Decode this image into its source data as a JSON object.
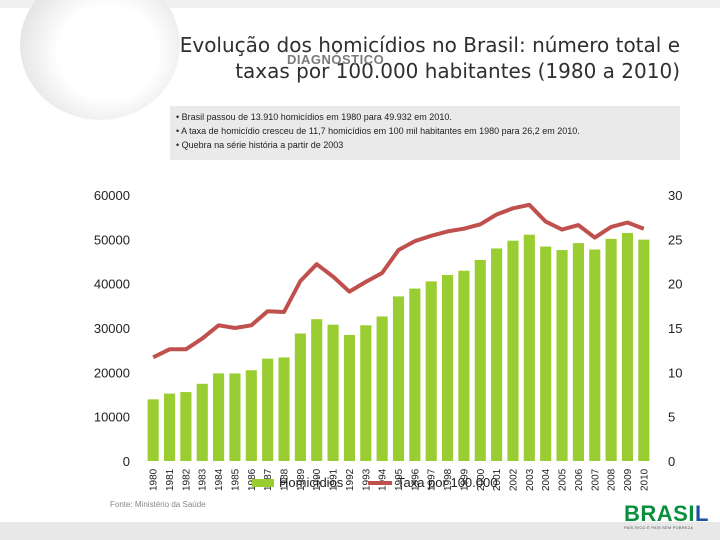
{
  "title_line1": "Evolução dos homicídios no Brasil: número total e",
  "title_line2": "taxas por 100.000 habitantes (1980 a 2010)",
  "overlay_title": "DIAGNÓSTICO",
  "notes": [
    "• Brasil passou de 13.910 homicídios em 1980 para 49.932 em 2010.",
    "• A taxa de homicídio cresceu de 11,7 homicídios em 100 mil habitantes em 1980 para 26,2 em 2010.",
    "• Quebra na série história a partir de 2003"
  ],
  "source": "Fonte: Ministério da Saúde",
  "logo": {
    "word_green": "BRASI",
    "word_blue": "L",
    "tagline": "PAÍS RICO É PAÍS SEM POBREZA"
  },
  "colors": {
    "bar": "#9acd32",
    "line": "#c0504d",
    "plot_bg": "#ffffff"
  },
  "chart_data": {
    "type": "bar",
    "categories": [
      "1980",
      "1981",
      "1982",
      "1983",
      "1984",
      "1985",
      "1986",
      "1987",
      "1988",
      "1989",
      "1990",
      "1991",
      "1992",
      "1993",
      "1994",
      "1995",
      "1996",
      "1997",
      "1998",
      "1999",
      "2000",
      "2001",
      "2002",
      "2003",
      "2004",
      "2005",
      "2006",
      "2007",
      "2008",
      "2009",
      "2010"
    ],
    "series": [
      {
        "name": "Homicídios",
        "type": "bar",
        "axis": "left",
        "values": [
          13910,
          15213,
          15550,
          17408,
          19767,
          19747,
          20481,
          23087,
          23357,
          28757,
          31989,
          30750,
          28435,
          30610,
          32603,
          37128,
          38894,
          40507,
          41950,
          42914,
          45360,
          47943,
          49695,
          51043,
          48374,
          47578,
          49145,
          47707,
          50113,
          51434,
          49932
        ]
      },
      {
        "name": "Taxa por 100.000",
        "type": "line",
        "axis": "right",
        "values": [
          11.7,
          12.6,
          12.6,
          13.8,
          15.3,
          15.0,
          15.3,
          16.9,
          16.8,
          20.3,
          22.2,
          20.8,
          19.1,
          20.2,
          21.2,
          23.8,
          24.8,
          25.4,
          25.9,
          26.2,
          26.7,
          27.8,
          28.5,
          28.9,
          27.0,
          26.1,
          26.6,
          25.2,
          26.4,
          26.9,
          26.2
        ]
      }
    ],
    "yleft": {
      "ylim": [
        0,
        60000
      ],
      "ticks": [
        "0",
        "10000",
        "20000",
        "30000",
        "40000",
        "50000",
        "60000"
      ]
    },
    "yright": {
      "ylim": [
        0,
        30
      ],
      "ticks": [
        "0",
        "5",
        "10",
        "15",
        "20",
        "25",
        "30"
      ]
    },
    "grid": false,
    "legend": "bottom"
  }
}
